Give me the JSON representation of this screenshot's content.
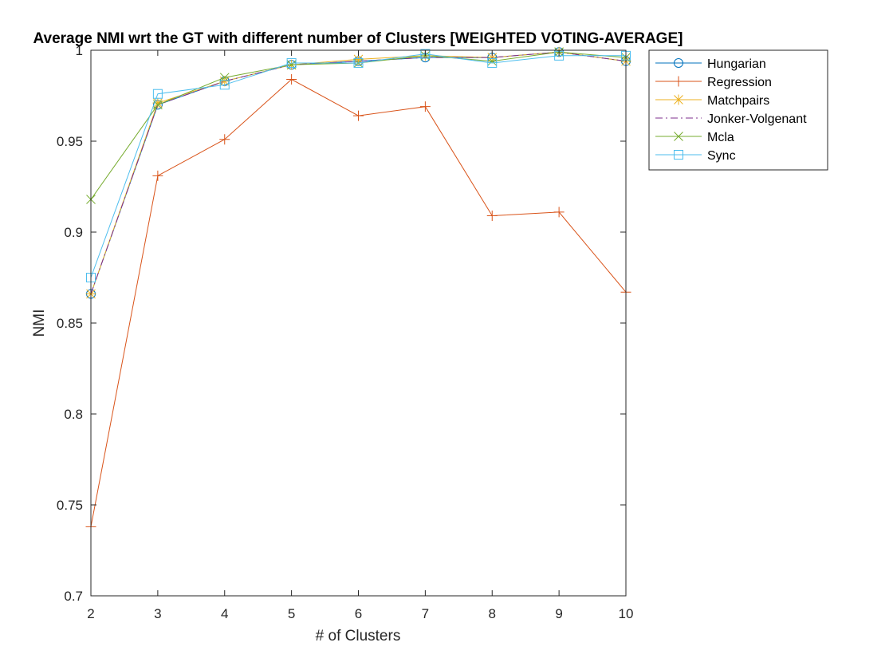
{
  "chart_data": {
    "type": "line",
    "title": "Average NMI wrt the GT with different number of Clusters [WEIGHTED VOTING-AVERAGE]",
    "xlabel": "# of Clusters",
    "ylabel": "NMI",
    "x": [
      2,
      3,
      4,
      5,
      6,
      7,
      8,
      9,
      10
    ],
    "xlim": [
      2,
      10
    ],
    "ylim": [
      0.7,
      1.0
    ],
    "xticks": [
      2,
      3,
      4,
      5,
      6,
      7,
      8,
      9,
      10
    ],
    "yticks": [
      0.7,
      0.75,
      0.8,
      0.85,
      0.9,
      0.95,
      1
    ],
    "ytick_labels": [
      "0.7",
      "0.75",
      "0.8",
      "0.85",
      "0.9",
      "0.95",
      "1"
    ],
    "grid": false,
    "legend_position": "outside-top-right",
    "series": [
      {
        "name": "Hungarian",
        "color": "#0072BD",
        "marker": "circle",
        "dash": "solid",
        "values": [
          0.866,
          0.97,
          0.983,
          0.992,
          0.994,
          0.996,
          0.996,
          0.999,
          0.994
        ]
      },
      {
        "name": "Regression",
        "color": "#D95319",
        "marker": "plus",
        "dash": "solid",
        "values": [
          0.738,
          0.931,
          0.951,
          0.984,
          0.964,
          0.969,
          0.909,
          0.911,
          0.867
        ]
      },
      {
        "name": "Matchpairs",
        "color": "#EDB120",
        "marker": "star",
        "dash": "solid",
        "values": [
          0.866,
          0.971,
          0.983,
          0.992,
          0.995,
          0.997,
          0.996,
          0.999,
          0.994
        ]
      },
      {
        "name": "Jonker-Volgenant",
        "color": "#7E2F8E",
        "marker": "none",
        "dash": "dashdot",
        "values": [
          0.866,
          0.97,
          0.983,
          0.992,
          0.994,
          0.996,
          0.996,
          0.999,
          0.994
        ]
      },
      {
        "name": "Mcla",
        "color": "#77AC30",
        "marker": "x",
        "dash": "solid",
        "values": [
          0.918,
          0.97,
          0.985,
          0.992,
          0.993,
          0.997,
          0.994,
          0.999,
          0.996
        ]
      },
      {
        "name": "Sync",
        "color": "#4DBEEE",
        "marker": "square",
        "dash": "solid",
        "values": [
          0.875,
          0.976,
          0.981,
          0.993,
          0.993,
          0.998,
          0.993,
          0.997,
          0.997
        ]
      }
    ]
  }
}
